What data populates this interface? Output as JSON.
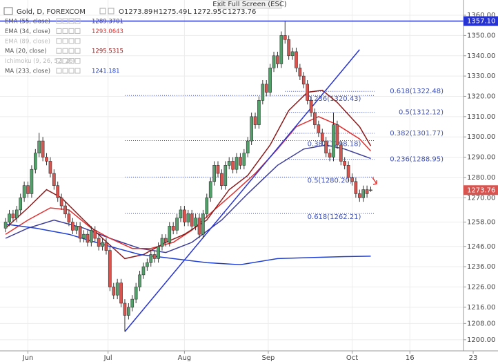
{
  "chart_data": {
    "type": "candlestick",
    "title": "Gold, D, FOREXCOM",
    "ohlc_names": [
      "O",
      "H",
      "L",
      "C"
    ],
    "tooltip": "Exit Full Screen (ESC)",
    "up_color": "#53a06a",
    "down_color": "#d9534f",
    "grid": true,
    "xlim": [
      -1.5,
      122.9
    ],
    "ylim": [
      1194.5,
      1367.5
    ],
    "xticks": [
      {
        "value": 6,
        "label": "Jun"
      },
      {
        "value": 27.5,
        "label": "Jul"
      },
      {
        "value": 48,
        "label": "Aug"
      },
      {
        "value": 70.5,
        "label": "Sep"
      },
      {
        "value": 93,
        "label": "Oct"
      },
      {
        "value": 108.5,
        "label": "16"
      },
      {
        "value": 125.5,
        "label": "23"
      }
    ],
    "yticks": [
      {
        "value": 1360,
        "label": "1360.00"
      },
      {
        "value": 1350,
        "label": "1350.00"
      },
      {
        "value": 1340,
        "label": "1340.00"
      },
      {
        "value": 1330,
        "label": "1330.00"
      },
      {
        "value": 1320,
        "label": "1320.00"
      },
      {
        "value": 1310,
        "label": "1310.00"
      },
      {
        "value": 1300,
        "label": "1300.00"
      },
      {
        "value": 1290,
        "label": "1290.00"
      },
      {
        "value": 1280,
        "label": "1280.00"
      },
      {
        "value": 1270,
        "label": "1270.00"
      },
      {
        "value": 1258,
        "label": "1258.00"
      },
      {
        "value": 1246,
        "label": "1246.00"
      },
      {
        "value": 1236,
        "label": "1236.00"
      },
      {
        "value": 1226,
        "label": "1226.00"
      },
      {
        "value": 1216,
        "label": "1216.00"
      },
      {
        "value": 1208,
        "label": "1208.00"
      },
      {
        "value": 1200,
        "label": "1200.00"
      }
    ],
    "open": [
      1255,
      1258,
      1262,
      1260,
      1264,
      1270,
      1276,
      1272,
      1284,
      1292,
      1298,
      1290,
      1288,
      1282,
      1276,
      1270,
      1266,
      1262,
      1258,
      1254,
      1256,
      1250,
      1252,
      1248,
      1254,
      1250,
      1246,
      1248,
      1244,
      1226,
      1222,
      1228,
      1218,
      1212,
      1216,
      1220,
      1226,
      1232,
      1236,
      1238,
      1242,
      1240,
      1246,
      1250,
      1248,
      1256,
      1254,
      1260,
      1264,
      1258,
      1262,
      1256,
      1260,
      1252,
      1262,
      1270,
      1278,
      1286,
      1282,
      1276,
      1286,
      1288,
      1284,
      1290,
      1286,
      1292,
      1298,
      1310,
      1306,
      1318,
      1326,
      1322,
      1334,
      1340,
      1336,
      1350,
      1348,
      1340,
      1342,
      1334,
      1330,
      1326,
      1318,
      1312,
      1306,
      1302,
      1298,
      1292,
      1290,
      1306,
      1296,
      1288,
      1286,
      1280,
      1278,
      1272,
      1270,
      1274,
      1273.89
    ],
    "high": [
      1260,
      1264,
      1264,
      1266,
      1272,
      1278,
      1278,
      1286,
      1294,
      1302,
      1300,
      1292,
      1290,
      1284,
      1278,
      1272,
      1268,
      1264,
      1260,
      1258,
      1258,
      1254,
      1254,
      1256,
      1256,
      1252,
      1250,
      1250,
      1246,
      1228,
      1230,
      1230,
      1220,
      1218,
      1222,
      1228,
      1234,
      1238,
      1240,
      1244,
      1244,
      1248,
      1252,
      1252,
      1258,
      1258,
      1262,
      1266,
      1266,
      1264,
      1264,
      1262,
      1262,
      1264,
      1272,
      1280,
      1288,
      1288,
      1284,
      1288,
      1290,
      1290,
      1292,
      1292,
      1294,
      1300,
      1312,
      1312,
      1320,
      1328,
      1328,
      1336,
      1342,
      1342,
      1352,
      1357,
      1350,
      1344,
      1344,
      1336,
      1332,
      1328,
      1320,
      1314,
      1308,
      1304,
      1300,
      1294,
      1312,
      1308,
      1298,
      1290,
      1288,
      1282,
      1280,
      1274,
      1276,
      1276,
      1275.49
    ],
    "low": [
      1253,
      1256,
      1258,
      1258,
      1262,
      1268,
      1270,
      1270,
      1282,
      1290,
      1288,
      1286,
      1280,
      1274,
      1268,
      1264,
      1260,
      1256,
      1252,
      1252,
      1248,
      1248,
      1246,
      1246,
      1248,
      1244,
      1244,
      1242,
      1224,
      1220,
      1220,
      1216,
      1204,
      1210,
      1214,
      1218,
      1224,
      1230,
      1234,
      1236,
      1238,
      1238,
      1244,
      1246,
      1246,
      1252,
      1252,
      1258,
      1256,
      1256,
      1254,
      1254,
      1250,
      1250,
      1260,
      1268,
      1276,
      1280,
      1274,
      1274,
      1284,
      1282,
      1282,
      1284,
      1284,
      1290,
      1296,
      1304,
      1304,
      1316,
      1320,
      1320,
      1332,
      1334,
      1334,
      1346,
      1338,
      1338,
      1332,
      1328,
      1324,
      1316,
      1310,
      1304,
      1300,
      1296,
      1290,
      1288,
      1288,
      1294,
      1286,
      1284,
      1278,
      1276,
      1270,
      1268,
      1268,
      1270,
      1272.95
    ],
    "close": [
      1258,
      1262,
      1260,
      1264,
      1270,
      1276,
      1272,
      1284,
      1292,
      1298,
      1290,
      1288,
      1282,
      1276,
      1270,
      1266,
      1262,
      1258,
      1254,
      1256,
      1250,
      1252,
      1248,
      1254,
      1250,
      1246,
      1248,
      1244,
      1226,
      1222,
      1228,
      1218,
      1212,
      1216,
      1220,
      1226,
      1232,
      1236,
      1238,
      1242,
      1240,
      1246,
      1250,
      1248,
      1256,
      1254,
      1260,
      1264,
      1258,
      1262,
      1256,
      1260,
      1252,
      1262,
      1270,
      1278,
      1286,
      1282,
      1276,
      1286,
      1288,
      1284,
      1290,
      1286,
      1292,
      1298,
      1310,
      1306,
      1318,
      1326,
      1322,
      1334,
      1340,
      1336,
      1350,
      1348,
      1340,
      1342,
      1334,
      1330,
      1326,
      1318,
      1312,
      1306,
      1302,
      1298,
      1292,
      1290,
      1306,
      1296,
      1288,
      1286,
      1280,
      1278,
      1272,
      1270,
      1274,
      1272,
      1273.76
    ],
    "last_price_color": "#d9534f",
    "indicators": [
      {
        "name": "EMA (55, close)",
        "last": 1289.3701,
        "color": "#3b3b98",
        "x": [
          0,
          6,
          13,
          21,
          28,
          36,
          43,
          50,
          58,
          65,
          73,
          80,
          86,
          91,
          98
        ],
        "values": [
          1250,
          1255,
          1259,
          1255,
          1250,
          1245,
          1243,
          1248,
          1259,
          1272,
          1286,
          1294,
          1296,
          1294,
          1289.37
        ]
      },
      {
        "name": "EMA (34, close)",
        "last": 1293.0643,
        "color": "#e03030",
        "x": [
          0,
          6,
          12,
          17,
          23,
          28,
          34,
          39,
          45,
          50,
          56,
          61,
          67,
          73,
          78,
          84,
          89,
          95,
          98
        ],
        "values": [
          1252,
          1259,
          1265,
          1264,
          1255,
          1250,
          1245,
          1245,
          1248,
          1254,
          1264,
          1272,
          1282,
          1294,
          1305,
          1310,
          1306,
          1299,
          1293.06
        ]
      },
      {
        "name": "EMA (89, close)",
        "hidden": true
      },
      {
        "name": "MA (20, close)",
        "last": 1295.5315,
        "color": "#8b1a1a",
        "x": [
          0,
          6,
          11,
          15,
          21,
          26,
          32,
          37,
          43,
          48,
          54,
          60,
          65,
          71,
          76,
          81,
          85,
          89,
          95,
          98
        ],
        "values": [
          1255,
          1265,
          1274,
          1270,
          1259,
          1250,
          1240,
          1242,
          1248,
          1252,
          1259,
          1274,
          1281,
          1296,
          1313,
          1322,
          1323,
          1317,
          1305,
          1295.53
        ]
      },
      {
        "name": "Ichimoku (9, 26, 52, 26)",
        "hidden": true
      },
      {
        "name": "MA (233, close)",
        "last": 1241.181,
        "color": "#1f3fd1",
        "x": [
          0,
          8,
          17,
          26,
          36,
          45,
          54,
          63,
          73,
          82,
          91,
          98
        ],
        "values": [
          1257,
          1255,
          1252,
          1247,
          1242,
          1240,
          1238,
          1237,
          1240,
          1240.5,
          1241,
          1241.18
        ]
      }
    ],
    "trendline": {
      "color": "#2733d1",
      "x": [
        32,
        95
      ],
      "values": [
        1204,
        1343
      ]
    },
    "price_line": {
      "value": 1357.1,
      "label": "1357.10",
      "color": "#2733d1"
    },
    "fib_sets": [
      {
        "x": [
          75,
          99
        ],
        "color": "#3f51b5",
        "levels": [
          {
            "value": 1322.48,
            "label": "0.618(1322.48)"
          },
          {
            "value": 1312.12,
            "label": "0.5(1312.12)"
          },
          {
            "value": 1301.77,
            "label": "0.382(1301.77)"
          },
          {
            "value": 1288.95,
            "label": "0.236(1288.95)"
          }
        ]
      },
      {
        "x": [
          32,
          99
        ],
        "color": "#3f51b5",
        "levels": [
          {
            "value": 1320.43,
            "label": "0.236(1320.43)"
          },
          {
            "value": 1298.18,
            "label": "0.382(1298.18)"
          },
          {
            "value": 1280.2,
            "label": "0.5(1280.20)"
          },
          {
            "value": 1262.21,
            "label": "0.618(1262.21)"
          }
        ]
      }
    ]
  }
}
